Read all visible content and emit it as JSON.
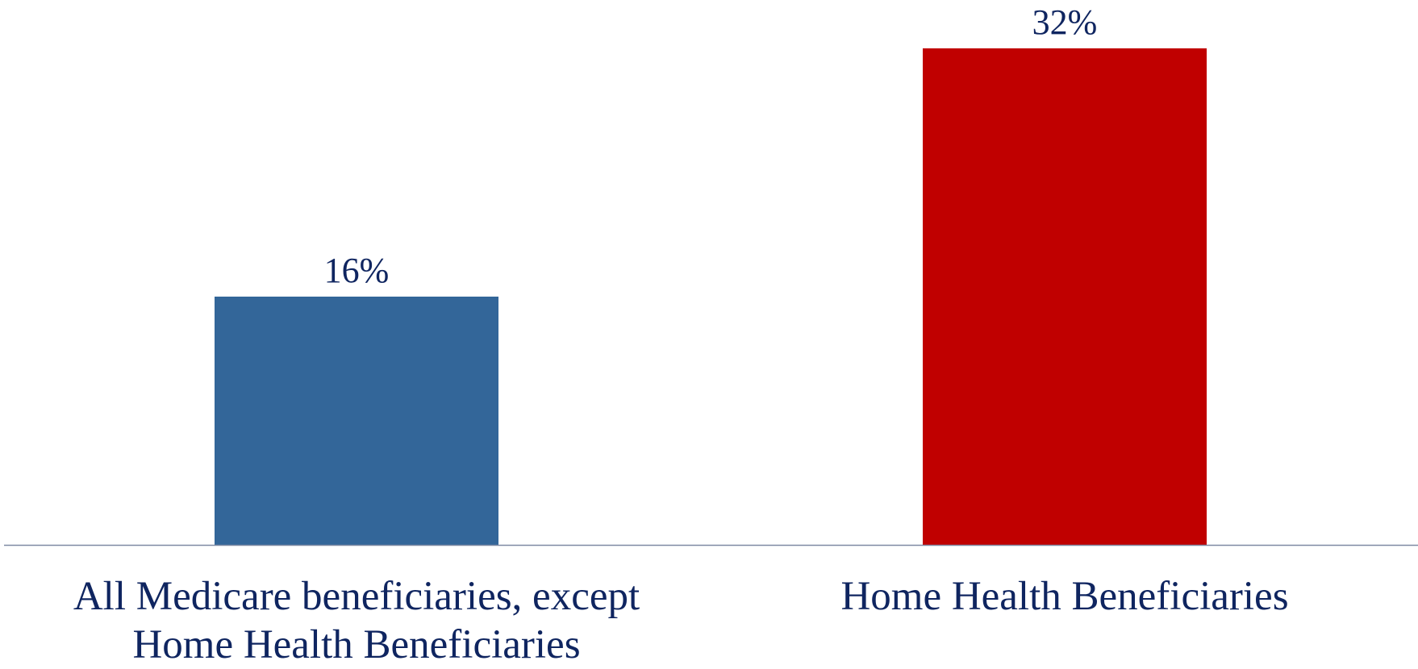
{
  "chart_data": {
    "type": "bar",
    "title": "",
    "xlabel": "",
    "ylabel": "",
    "categories": [
      "All Medicare beneficiaries, except Home Health Beneficiaries",
      "Home Health Beneficiaries"
    ],
    "values": [
      16,
      32
    ],
    "value_labels": [
      "16%",
      "32%"
    ],
    "ylim": [
      0,
      32
    ],
    "grid": false,
    "legend": "none",
    "bar_colors": [
      "#336699",
      "#c00000"
    ],
    "text_color": "#0f2560",
    "axis_color": "#7f8aa3"
  }
}
